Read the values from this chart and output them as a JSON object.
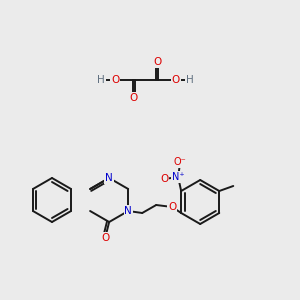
{
  "background_color": "#ebebeb",
  "atom_colors": {
    "C": "#1a1a1a",
    "N": "#0000cc",
    "O": "#dd0000",
    "H": "#607080"
  },
  "bond_color": "#1a1a1a",
  "figsize": [
    3.0,
    3.0
  ],
  "dpi": 100
}
